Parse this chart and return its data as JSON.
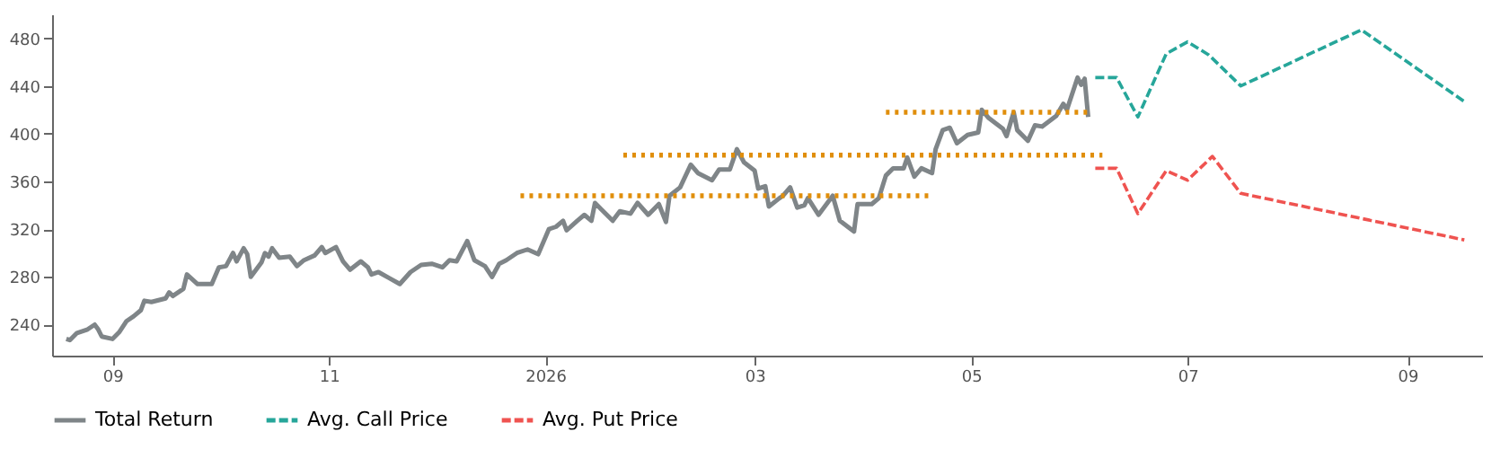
{
  "chart_data": {
    "type": "line",
    "xlim": [
      "2025-08-15",
      "2026-09-22"
    ],
    "ylim": [
      214,
      500
    ],
    "xticks": [
      {
        "value": "2025-09-01",
        "label": "09"
      },
      {
        "value": "2025-11-01",
        "label": "11"
      },
      {
        "value": "2026-01-01",
        "label": "2026"
      },
      {
        "value": "2026-03-01",
        "label": "03"
      },
      {
        "value": "2026-05-01",
        "label": "05"
      },
      {
        "value": "2026-07-01",
        "label": "07"
      },
      {
        "value": "2026-09-01",
        "label": "09"
      }
    ],
    "yticks": [
      240,
      280,
      320,
      360,
      400,
      440,
      480
    ],
    "grid": false,
    "legend": "bottom",
    "marker": "none",
    "series": [
      {
        "name": "Total Return",
        "color": "#7f8588",
        "line_style": "solid",
        "x": [
          "2025-08-19",
          "2025-08-20",
          "2025-08-22",
          "2025-08-25",
          "2025-08-27",
          "2025-08-28",
          "2025-08-29",
          "2025-09-01",
          "2025-09-03",
          "2025-09-05",
          "2025-09-07",
          "2025-09-09",
          "2025-09-10",
          "2025-09-12",
          "2025-09-16",
          "2025-09-17",
          "2025-09-18",
          "2025-09-21",
          "2025-09-22",
          "2025-09-25",
          "2025-09-29",
          "2025-10-01",
          "2025-10-03",
          "2025-10-05",
          "2025-10-06",
          "2025-10-08",
          "2025-10-09",
          "2025-10-10",
          "2025-10-13",
          "2025-10-14",
          "2025-10-15",
          "2025-10-16",
          "2025-10-18",
          "2025-10-21",
          "2025-10-23",
          "2025-10-25",
          "2025-10-28",
          "2025-10-30",
          "2025-10-31",
          "2025-11-03",
          "2025-11-05",
          "2025-11-07",
          "2025-11-10",
          "2025-11-12",
          "2025-11-13",
          "2025-11-15",
          "2025-11-18",
          "2025-11-21",
          "2025-11-24",
          "2025-11-27",
          "2025-11-30",
          "2025-12-03",
          "2025-12-05",
          "2025-12-07",
          "2025-12-10",
          "2025-12-12",
          "2025-12-15",
          "2025-12-17",
          "2025-12-19",
          "2025-12-21",
          "2025-12-24",
          "2025-12-27",
          "2025-12-30",
          "2026-01-02",
          "2026-01-04",
          "2026-01-06",
          "2026-01-07",
          "2026-01-10",
          "2026-01-12",
          "2026-01-14",
          "2026-01-15",
          "2026-01-17",
          "2026-01-20",
          "2026-01-22",
          "2026-01-25",
          "2026-01-27",
          "2026-01-30",
          "2026-02-02",
          "2026-02-04",
          "2026-02-05",
          "2026-02-08",
          "2026-02-11",
          "2026-02-13",
          "2026-02-17",
          "2026-02-19",
          "2026-02-22",
          "2026-02-24",
          "2026-02-26",
          "2026-03-01",
          "2026-03-02",
          "2026-03-04",
          "2026-03-05",
          "2026-03-08",
          "2026-03-09",
          "2026-03-11",
          "2026-03-13",
          "2026-03-15",
          "2026-03-16",
          "2026-03-19",
          "2026-03-23",
          "2026-03-25",
          "2026-03-29",
          "2026-03-30",
          "2026-04-03",
          "2026-04-05",
          "2026-04-07",
          "2026-04-09",
          "2026-04-12",
          "2026-04-13",
          "2026-04-15",
          "2026-04-17",
          "2026-04-20",
          "2026-04-21",
          "2026-04-23",
          "2026-04-25",
          "2026-04-27",
          "2026-04-30",
          "2026-05-03",
          "2026-05-04",
          "2026-05-06",
          "2026-05-10",
          "2026-05-11",
          "2026-05-13",
          "2026-05-14",
          "2026-05-17",
          "2026-05-19",
          "2026-05-21",
          "2026-05-25",
          "2026-05-27",
          "2026-05-28",
          "2026-05-31",
          "2026-06-01",
          "2026-06-02",
          "2026-06-03"
        ],
        "values": [
          228,
          227,
          233,
          236,
          240,
          236,
          230,
          228,
          234,
          243,
          247,
          252,
          260,
          259,
          262,
          267,
          264,
          270,
          282,
          274,
          274,
          288,
          289,
          300,
          293,
          304,
          299,
          280,
          292,
          300,
          297,
          304,
          296,
          297,
          289,
          294,
          298,
          305,
          300,
          305,
          293,
          286,
          293,
          288,
          282,
          284,
          279,
          274,
          284,
          290,
          291,
          288,
          294,
          293,
          310,
          294,
          289,
          280,
          291,
          294,
          300,
          303,
          299,
          320,
          322,
          327,
          319,
          327,
          332,
          327,
          342,
          336,
          327,
          335,
          333,
          342,
          332,
          341,
          326,
          348,
          355,
          374,
          367,
          361,
          370,
          370,
          387,
          376,
          369,
          354,
          356,
          339,
          346,
          348,
          355,
          338,
          340,
          346,
          332,
          348,
          327,
          318,
          341,
          341,
          346,
          365,
          371,
          371,
          380,
          364,
          371,
          367,
          387,
          403,
          405,
          392,
          399,
          401,
          420,
          413,
          404,
          398,
          418,
          403,
          394,
          407,
          406,
          415,
          425,
          420,
          447,
          441,
          446,
          414
        ]
      },
      {
        "name": "Avg. Call Price",
        "color": "#26a69a",
        "line_style": "dashed",
        "x": [
          "2026-06-05",
          "2026-06-11",
          "2026-06-17",
          "2026-06-25",
          "2026-07-01",
          "2026-07-07",
          "2026-07-16",
          "2026-08-19",
          "2026-09-17"
        ],
        "values": [
          447,
          447,
          414,
          467,
          477,
          466,
          440,
          487,
          427
        ]
      },
      {
        "name": "Avg. Put Price",
        "color": "#ef5350",
        "line_style": "dashed",
        "x": [
          "2026-06-05",
          "2026-06-11",
          "2026-06-17",
          "2026-06-25",
          "2026-07-01",
          "2026-07-08",
          "2026-07-16",
          "2026-09-17"
        ],
        "values": [
          371,
          371,
          333,
          369,
          361,
          381,
          350,
          311
        ]
      },
      {
        "color": "#e08e0b",
        "line_style": "dotted",
        "x": [
          "2025-12-25",
          "2026-04-20"
        ],
        "values": [
          348,
          348
        ]
      },
      {
        "color": "#e08e0b",
        "line_style": "dotted",
        "x": [
          "2026-01-23",
          "2026-06-07"
        ],
        "values": [
          382,
          382
        ]
      },
      {
        "color": "#e08e0b",
        "line_style": "dotted",
        "x": [
          "2026-04-07",
          "2026-06-03"
        ],
        "values": [
          418,
          418
        ]
      }
    ]
  }
}
